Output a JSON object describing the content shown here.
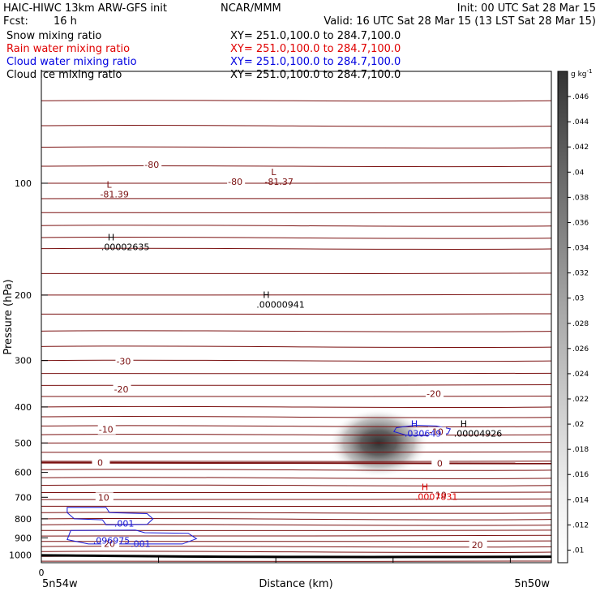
{
  "header": {
    "title_left": "HAIC-HIWC 13km ARW-GFS init",
    "title_mid": "NCAR/MMM",
    "init": "Init: 00 UTC Sat 28 Mar 15",
    "fcst_label": "Fcst:",
    "fcst_value": "16 h",
    "valid": "Valid: 16 UTC Sat 28 Mar 15 (13 LST Sat 28 Mar 15)"
  },
  "fields": [
    {
      "name": "Snow mixing ratio",
      "xy": "XY= 251.0,100.0 to 284.7,100.0",
      "color": "#000000"
    },
    {
      "name": "Rain water mixing ratio",
      "xy": "XY= 251.0,100.0 to 284.7,100.0",
      "color": "#e00000"
    },
    {
      "name": "Cloud water mixing ratio",
      "xy": "XY= 251.0,100.0 to 284.7,100.0",
      "color": "#0000e0"
    },
    {
      "name": "Cloud ice mixing ratio",
      "xy": "XY= 251.0,100.0 to 284.7,100.0",
      "color": "#000000"
    }
  ],
  "colors": {
    "temperature": "#7a1010",
    "rain": "#e00000",
    "cloud": "#1a1ad8",
    "surface": "#000000"
  },
  "chart_data": {
    "type": "cross-section",
    "xlabel": "Distance (km)",
    "ylabel": "Pressure (hPa)",
    "x_start_label": "5n54w",
    "x_end_label": "5n50w",
    "x_zero_label": "0",
    "x_range": [
      0,
      434
    ],
    "ylim": [
      1050,
      50
    ],
    "y_scale": "log",
    "y_ticks": [
      100,
      200,
      300,
      400,
      500,
      600,
      700,
      800,
      900,
      1000
    ],
    "colorbar": {
      "unit": "g kg",
      "unit_exp": "-1",
      "ticks": [
        ".01",
        ".012",
        ".014",
        ".016",
        ".018",
        ".02",
        ".022",
        ".024",
        ".026",
        ".028",
        ".03",
        ".032",
        ".034",
        ".036",
        ".038",
        ".04",
        ".042",
        ".044",
        ".046"
      ],
      "min": 0.009,
      "max": 0.048
    },
    "snow_max": {
      "x": 287,
      "p": 500,
      "value": 0.046
    },
    "temperature_labels": [
      {
        "text": "-80",
        "x": 94,
        "p": 89
      },
      {
        "text": "-80",
        "x": 165,
        "p": 99
      },
      {
        "text": "-30",
        "x": 70,
        "p": 301
      },
      {
        "text": "-20",
        "x": 68,
        "p": 358
      },
      {
        "text": "-20",
        "x": 334,
        "p": 368
      },
      {
        "text": "-10",
        "x": 55,
        "p": 460
      },
      {
        "text": "-10",
        "x": 336,
        "p": 467
      },
      {
        "text": "0",
        "x": 50,
        "p": 565
      },
      {
        "text": "0",
        "x": 339,
        "p": 567
      },
      {
        "text": "10",
        "x": 53,
        "p": 700
      },
      {
        "text": "10",
        "x": 340,
        "p": 690
      },
      {
        "text": "20",
        "x": 58,
        "p": 932
      },
      {
        "text": "20",
        "x": 371,
        "p": 939
      }
    ],
    "extrema": [
      {
        "mark": "L",
        "value": "-81.39",
        "x": 50,
        "p": 106,
        "color": "temperature"
      },
      {
        "mark": "L",
        "value": "-81.37",
        "x": 190,
        "p": 98,
        "color": "temperature"
      },
      {
        "mark": "H",
        "value": ".00002635",
        "x": 51,
        "p": 147,
        "color": "black"
      },
      {
        "mark": "H",
        "value": ".00000941",
        "x": 183,
        "p": 210,
        "color": "black"
      },
      {
        "mark": "H",
        "value": ".030649",
        "x": 309,
        "p": 466,
        "color": "cloud"
      },
      {
        "mark": "H",
        "value": ".00004926",
        "x": 351,
        "p": 466,
        "color": "black"
      },
      {
        "mark": "H",
        "value": ".0007831",
        "x": 318,
        "p": 690,
        "color": "rain"
      }
    ],
    "cloud_labels": [
      {
        "text": ".001",
        "x": 62,
        "p": 822
      },
      {
        "text": ".096975",
        "x": 44,
        "p": 915
      },
      {
        "text": ".001",
        "x": 76,
        "p": 932
      }
    ]
  }
}
